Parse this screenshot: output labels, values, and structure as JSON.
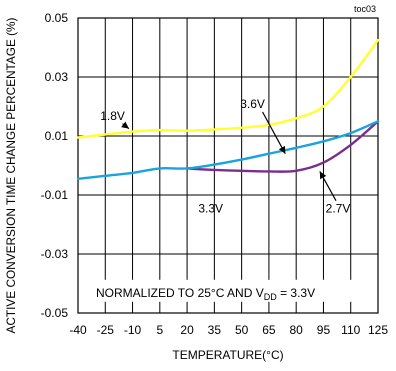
{
  "chart_data": {
    "type": "line",
    "chart_id": "toc03",
    "xlabel": "TEMPERATURE(°C)",
    "ylabel": "ACTIVE CONVERSION TIME CHANGE PERCENTAGE (%)",
    "xlim": [
      -40,
      125
    ],
    "ylim": [
      -0.05,
      0.05
    ],
    "x_ticks": [
      -40,
      -25,
      -10,
      5,
      20,
      35,
      50,
      65,
      80,
      95,
      110,
      125
    ],
    "x_tick_labels": [
      "-40",
      "-25",
      "-10",
      "5",
      "20",
      "35",
      "50",
      "65",
      "80",
      "95",
      "110",
      "125"
    ],
    "y_ticks": [
      -0.05,
      -0.03,
      -0.01,
      0.01,
      0.03,
      0.05
    ],
    "y_tick_labels": [
      "-0.05",
      "-0.03",
      "-0.01",
      "0.01",
      "0.03",
      "0.05"
    ],
    "grid": true,
    "note": {
      "prefix": "NORMALIZED TO 25°C AND V",
      "subscript": "DD",
      "suffix": " = 3.3V"
    },
    "series": [
      {
        "name": "1.8V",
        "color": "#ffff33",
        "x": [
          -40,
          -25,
          -10,
          5,
          20,
          35,
          50,
          65,
          80,
          95,
          110,
          125
        ],
        "y": [
          0.0095,
          0.0105,
          0.0115,
          0.012,
          0.0118,
          0.0122,
          0.0128,
          0.0138,
          0.016,
          0.02,
          0.03,
          0.0425
        ]
      },
      {
        "name": "3.6V",
        "color": "#1aa3e0",
        "x": [
          -40,
          -25,
          -10,
          5,
          20,
          35,
          50,
          65,
          80,
          95,
          110,
          125
        ],
        "y": [
          -0.0045,
          -0.0035,
          -0.0025,
          -0.001,
          -0.001,
          0.0003,
          0.002,
          0.004,
          0.006,
          0.0082,
          0.011,
          0.015
        ]
      },
      {
        "name": "3.3V",
        "color": "#7b2d8e",
        "x": [
          20,
          35,
          50,
          65,
          80,
          95,
          110,
          125
        ],
        "y": [
          -0.001,
          -0.0015,
          -0.0018,
          -0.002,
          -0.0018,
          0.001,
          0.007,
          0.015
        ]
      },
      {
        "name": "2.7V",
        "color": "#7b2d8e",
        "x": [],
        "y": []
      }
    ],
    "annotations": [
      {
        "text": "1.8V",
        "x": -21,
        "y": 0.0155,
        "arrow_to": [
          -12,
          0.0125
        ]
      },
      {
        "text": "3.6V",
        "x": 56,
        "y": 0.0195,
        "arrow_to": [
          74,
          0.004
        ]
      },
      {
        "text": "3.3V",
        "x": 33,
        "y": -0.016,
        "arrow_to": null
      },
      {
        "text": "2.7V",
        "x": 103,
        "y": -0.016,
        "arrow_to": [
          93,
          -0.002
        ]
      }
    ]
  }
}
